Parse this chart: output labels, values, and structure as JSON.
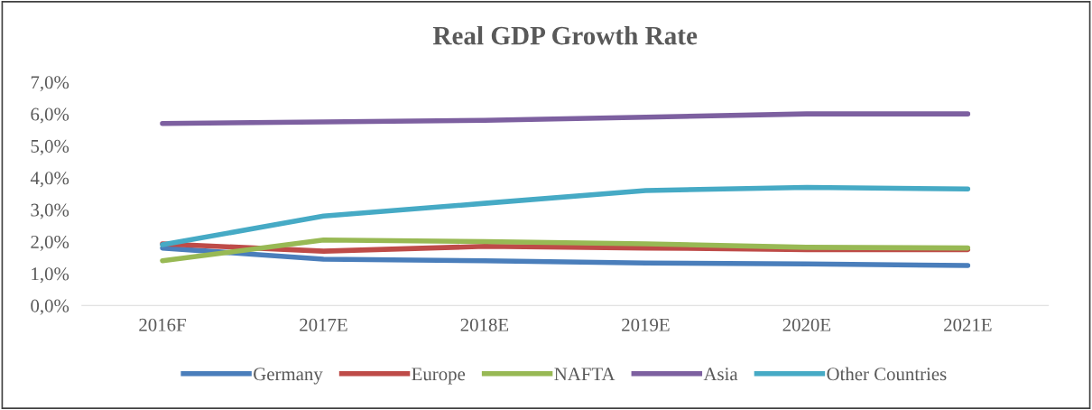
{
  "chart_data": {
    "type": "line",
    "title": "Real GDP Growth Rate",
    "categories": [
      "2016F",
      "2017E",
      "2018E",
      "2019E",
      "2020E",
      "2021E"
    ],
    "series": [
      {
        "name": "Germany",
        "color": "#4a7ebb",
        "values": [
          1.8,
          1.45,
          1.4,
          1.33,
          1.3,
          1.25
        ]
      },
      {
        "name": "Europe",
        "color": "#be4b48",
        "values": [
          1.93,
          1.7,
          1.85,
          1.8,
          1.75,
          1.75
        ]
      },
      {
        "name": "NAFTA",
        "color": "#98b954",
        "values": [
          1.4,
          2.05,
          2.0,
          1.93,
          1.82,
          1.8
        ]
      },
      {
        "name": "Asia",
        "color": "#7d60a0",
        "values": [
          5.7,
          5.75,
          5.8,
          5.9,
          6.0,
          6.0
        ]
      },
      {
        "name": "Other Countries",
        "color": "#46aac5",
        "values": [
          1.9,
          2.8,
          3.2,
          3.6,
          3.7,
          3.65
        ]
      }
    ],
    "ylim": [
      0,
      7
    ],
    "yticks": [
      {
        "value": 0,
        "label": "0,0%"
      },
      {
        "value": 1,
        "label": "1,0%"
      },
      {
        "value": 2,
        "label": "2,0%"
      },
      {
        "value": 3,
        "label": "3,0%"
      },
      {
        "value": 4,
        "label": "4,0%"
      },
      {
        "value": 5,
        "label": "5,0%"
      },
      {
        "value": 6,
        "label": "6,0%"
      },
      {
        "value": 7,
        "label": "7,0%"
      }
    ],
    "grid": false,
    "legend": "bottom",
    "marker": "none",
    "line_style": "solid"
  }
}
